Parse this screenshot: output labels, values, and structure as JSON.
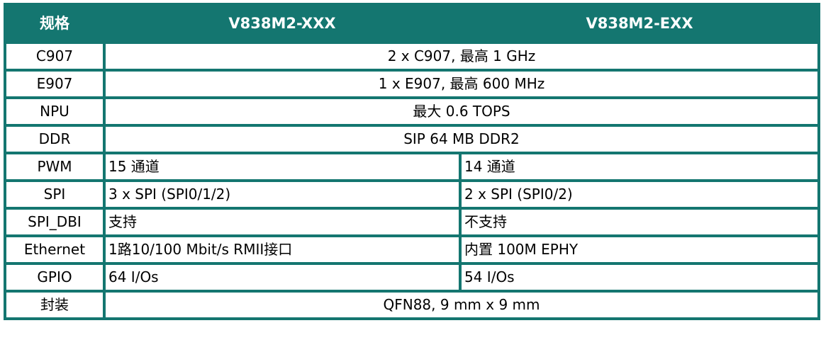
{
  "header": {
    "spec": "规格",
    "col1": "V838M2-XXX",
    "col2": "V838M2-EXX"
  },
  "colors": {
    "accent": "#147670"
  },
  "rows": [
    {
      "label": "C907",
      "shared": "2 x C907, 最高 1 GHz"
    },
    {
      "label": "E907",
      "shared": "1 x E907, 最高 600 MHz"
    },
    {
      "label": "NPU",
      "shared": "最大 0.6 TOPS"
    },
    {
      "label": "DDR",
      "shared": "SIP 64 MB DDR2"
    },
    {
      "label": "PWM",
      "xxx": "15 通道",
      "exx": "14 通道"
    },
    {
      "label": "SPI",
      "xxx": "3 x SPI (SPI0/1/2)",
      "exx": "2 x SPI (SPI0/2)"
    },
    {
      "label": "SPI_DBI",
      "xxx": "支持",
      "exx": "不支持"
    },
    {
      "label": "Ethernet",
      "xxx": "1路10/100 Mbit/s RMII接口",
      "exx": "内置 100M EPHY"
    },
    {
      "label": "GPIO",
      "xxx": "64 I/Os",
      "exx": "54 I/Os"
    },
    {
      "label": "封装",
      "shared": "QFN88, 9 mm x 9 mm"
    }
  ]
}
